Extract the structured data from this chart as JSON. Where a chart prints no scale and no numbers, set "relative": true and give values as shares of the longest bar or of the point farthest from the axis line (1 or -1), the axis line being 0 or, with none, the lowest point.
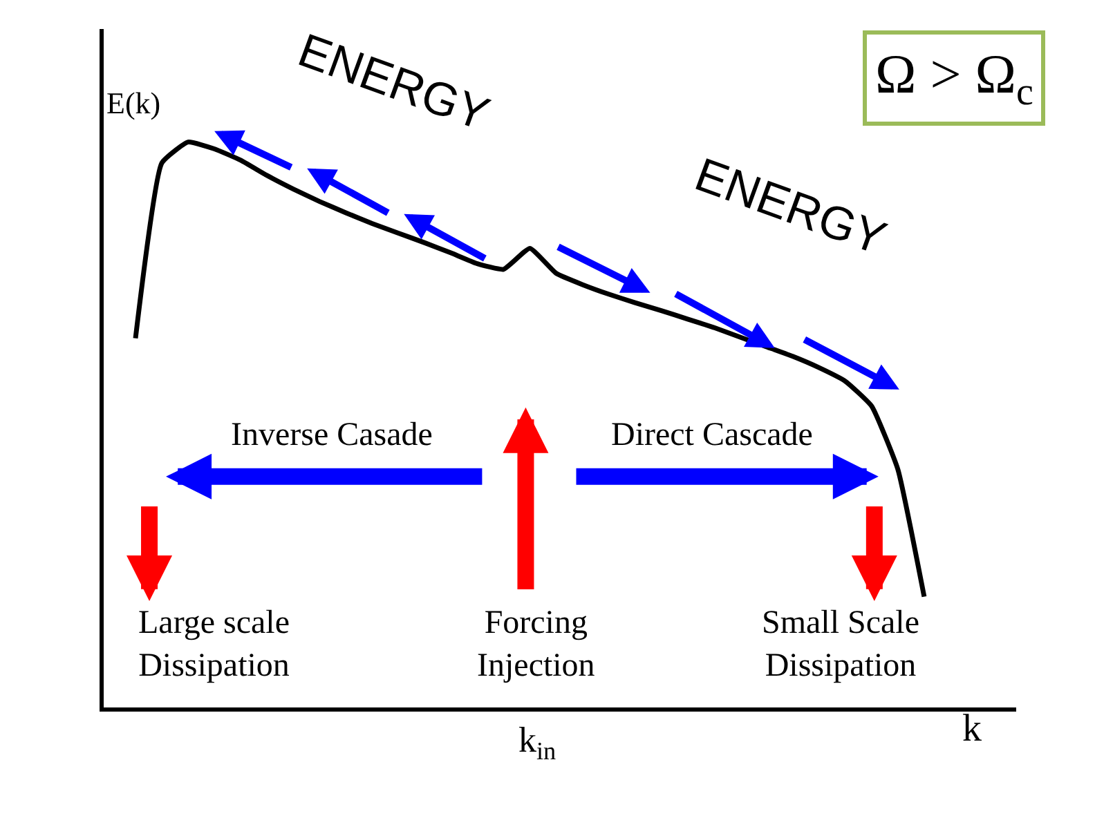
{
  "chart_data": {
    "type": "line",
    "relative": true,
    "xlabel": "k",
    "ylabel": "E(k)",
    "categories": [
      null,
      null,
      null,
      null,
      null,
      null,
      null,
      null,
      null,
      null,
      null,
      null,
      null,
      null,
      null,
      null,
      null,
      null,
      null,
      null,
      null,
      null,
      null,
      null,
      null,
      null,
      null,
      null,
      null,
      null,
      null
    ],
    "series": [
      {
        "color": "#000000",
        "values": [
          0.653,
          0.963,
          1,
          0.988,
          0.968,
          0.941,
          0.917,
          0.895,
          0.875,
          0.856,
          0.839,
          0.822,
          0.804,
          0.785,
          0.775,
          0.812,
          0.768,
          0.748,
          0.731,
          0.716,
          0.702,
          0.687,
          0.672,
          0.655,
          0.638,
          0.621,
          0.601,
          0.577,
          0.533,
          0.421,
          0.196
        ]
      }
    ],
    "marker": "none",
    "line_style": "solid",
    "annotations": [
      "ENERGY",
      "ENERGY",
      "Ω > Ω$_{c}$",
      "Inverse Casade",
      "Direct Cascade",
      "Large scale\nDissipation",
      "Forcing\nInjection",
      "Small Scale\nDissipation",
      "k$_{in}$"
    ]
  }
}
